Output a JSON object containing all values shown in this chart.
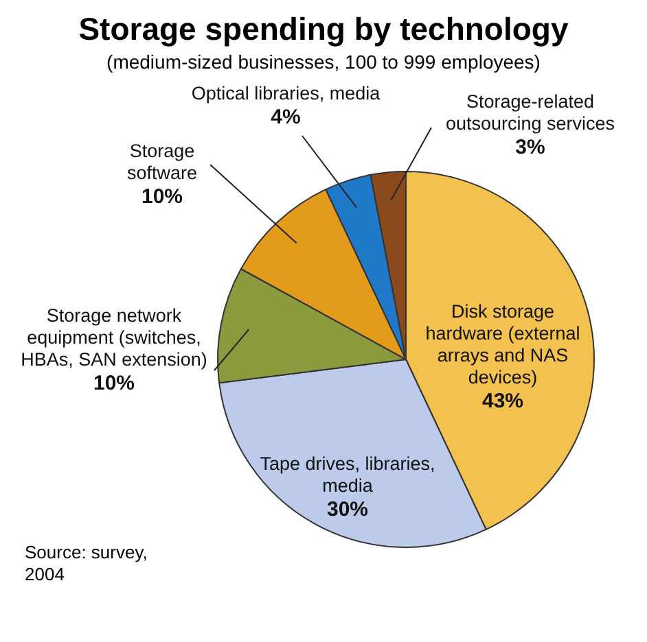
{
  "chart_data": {
    "type": "pie",
    "title": "Storage spending by technology",
    "subtitle": "(medium-sized businesses, 100 to 999 employees)",
    "categories": [
      "Disk storage hardware (external arrays and NAS devices)",
      "Tape drives, libraries, media",
      "Storage network equipment (switches, HBAs, SAN extension)",
      "Storage software",
      "Optical libraries, media",
      "Storage-related outsourcing services"
    ],
    "values": [
      43,
      30,
      10,
      10,
      4,
      3
    ],
    "value_labels": [
      "43%",
      "30%",
      "10%",
      "10%",
      "4%",
      "3%"
    ],
    "colors": [
      "#f2c14e",
      "#bccbe9",
      "#8b9a3c",
      "#e39b1c",
      "#1f78c8",
      "#8a4a1e"
    ],
    "annotations": [
      "Source: survey, 2004"
    ],
    "legend": false
  }
}
